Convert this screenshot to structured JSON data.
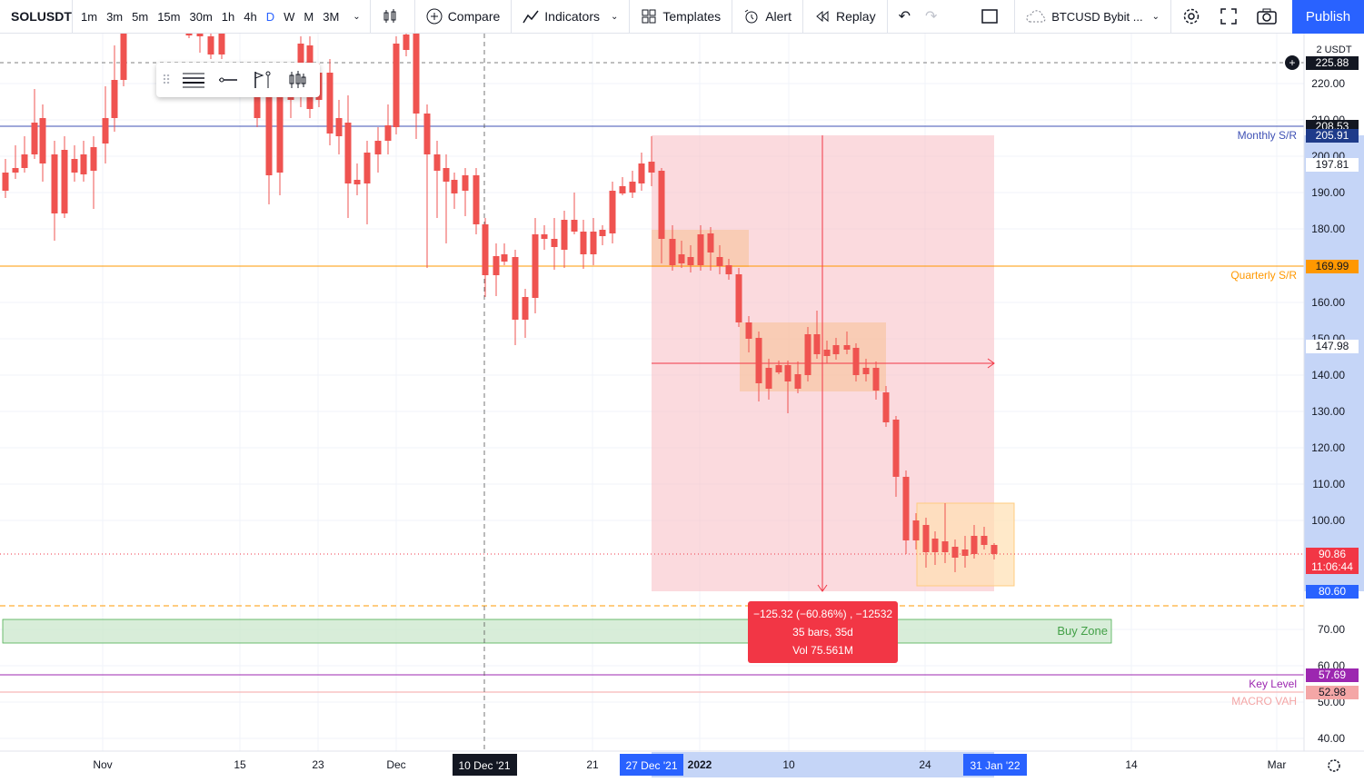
{
  "toolbar": {
    "symbol": "SOLUSDT",
    "intervals": [
      "1m",
      "3m",
      "5m",
      "15m",
      "30m",
      "1h",
      "4h",
      "D",
      "W",
      "M",
      "3M"
    ],
    "active_interval": "D",
    "compare_label": "Compare",
    "indicators_label": "Indicators",
    "templates_label": "Templates",
    "alert_label": "Alert",
    "replay_label": "Replay",
    "symbol_selector": "BTCUSD Bybit ...",
    "publish_label": "Publish"
  },
  "price_axis": {
    "currency_top": "2 USDT",
    "ticks": [
      "220.00",
      "210.00",
      "200.00",
      "190.00",
      "180.00",
      "160.00",
      "150.00",
      "140.00",
      "130.00",
      "120.00",
      "110.00",
      "100.00",
      "70.00",
      "60.00",
      "50.00",
      "40.00"
    ],
    "labels": [
      {
        "text": "225.88",
        "bg": "#131722",
        "fg": "#ffffff"
      },
      {
        "text": "208.53",
        "bg": "#131722",
        "fg": "#ffffff"
      },
      {
        "text": "205.91",
        "bg": "#1e3b8a",
        "fg": "#ffffff"
      },
      {
        "text": "197.81",
        "bg": "#ffffff",
        "fg": "#131722"
      },
      {
        "text": "169.99",
        "bg": "#ff9800",
        "fg": "#131722"
      },
      {
        "text": "147.98",
        "bg": "#ffffff",
        "fg": "#131722"
      },
      {
        "text": "90.86",
        "bg": "#f23645",
        "fg": "#ffffff"
      },
      {
        "text": "11:06:44",
        "bg": "#f23645",
        "fg": "#ffffff"
      },
      {
        "text": "80.60",
        "bg": "#2962ff",
        "fg": "#ffffff"
      },
      {
        "text": "57.69",
        "bg": "#9c27b0",
        "fg": "#ffffff"
      },
      {
        "text": "52.98",
        "bg": "#f4a6a6",
        "fg": "#131722"
      }
    ]
  },
  "time_axis": {
    "ticks": [
      "Nov",
      "15",
      "23",
      "Dec",
      "21",
      "2022",
      "10",
      "24",
      "14",
      "Mar"
    ],
    "highlight_labels": [
      "10 Dec '21",
      "27 Dec '21",
      "31 Jan '22"
    ]
  },
  "annotations": {
    "monthly_sr": "Monthly S/R",
    "quarterly_sr": "Quarterly S/R",
    "buy_zone": "Buy Zone",
    "key_level": "Key Level",
    "macro_vah": "MACRO VAH"
  },
  "measure": {
    "line1": "−125.32 (−60.86%) , −12532",
    "line2": "35 bars, 35d",
    "line3": "Vol 75.561M"
  },
  "colors": {
    "up": "#26a69a",
    "down": "#ef5350",
    "monthly": "#3f51b5",
    "quarterly": "#ff9800",
    "key_level": "#9c27b0",
    "accent": "#2962ff"
  },
  "chart_data": {
    "type": "candlestick",
    "symbol": "SOLUSDT",
    "levels": {
      "monthly_sr": 208.53,
      "quarterly_sr": 169.99,
      "key_level": 57.69,
      "macro_vah": 52.98,
      "current": 90.86
    },
    "measure": {
      "change": -125.32,
      "change_pct": -60.86,
      "bars": 35
    }
  }
}
